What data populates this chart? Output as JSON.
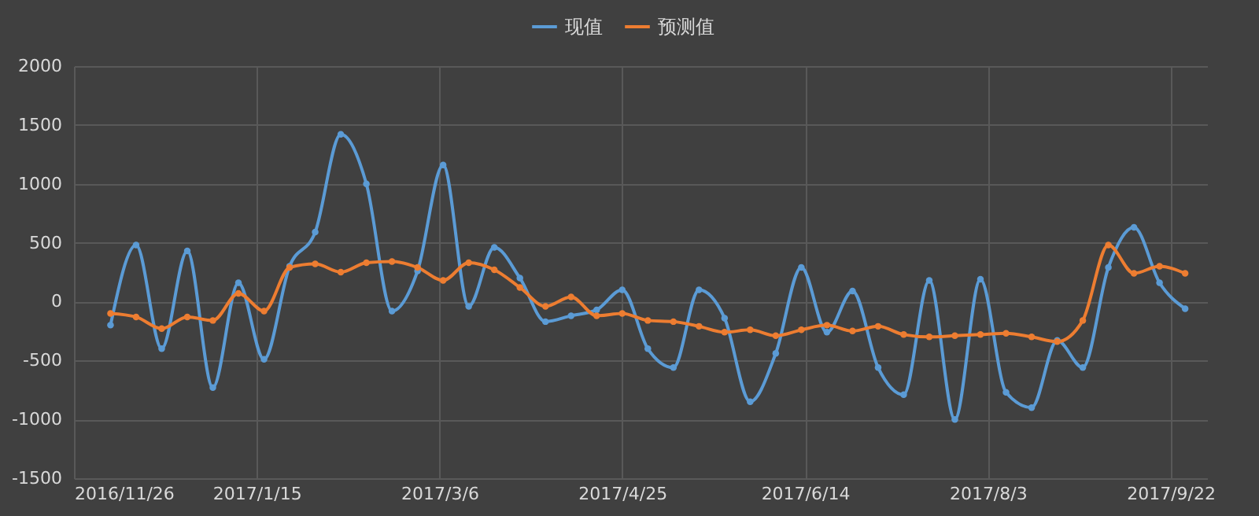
{
  "chart_data": {
    "type": "line",
    "x": [
      "2016-12-06",
      "2016-12-13",
      "2016-12-20",
      "2016-12-27",
      "2017-01-03",
      "2017-01-10",
      "2017-01-17",
      "2017-01-24",
      "2017-01-31",
      "2017-02-07",
      "2017-02-14",
      "2017-02-21",
      "2017-02-28",
      "2017-03-07",
      "2017-03-14",
      "2017-03-21",
      "2017-03-28",
      "2017-04-04",
      "2017-04-11",
      "2017-04-18",
      "2017-04-25",
      "2017-05-02",
      "2017-05-09",
      "2017-05-16",
      "2017-05-23",
      "2017-05-30",
      "2017-06-06",
      "2017-06-13",
      "2017-06-20",
      "2017-06-27",
      "2017-07-04",
      "2017-07-11",
      "2017-07-18",
      "2017-07-25",
      "2017-08-01",
      "2017-08-08",
      "2017-08-15",
      "2017-08-22",
      "2017-08-29",
      "2017-09-05",
      "2017-09-12",
      "2017-09-19",
      "2017-09-26"
    ],
    "series": [
      {
        "name": "现值",
        "color": "#5b9bd5",
        "values": [
          -200,
          480,
          -400,
          430,
          -730,
          160,
          -490,
          300,
          590,
          1420,
          1000,
          -80,
          260,
          1160,
          -40,
          460,
          200,
          -170,
          -120,
          -70,
          100,
          -400,
          -560,
          100,
          -140,
          -850,
          -440,
          290,
          -260,
          90,
          -560,
          -790,
          180,
          -1000,
          190,
          -770,
          -900,
          -330,
          -560,
          290,
          630,
          160,
          -60
        ]
      },
      {
        "name": "预测值",
        "color": "#ed7d31",
        "values": [
          -100,
          -130,
          -230,
          -130,
          -160,
          70,
          -80,
          290,
          320,
          250,
          330,
          340,
          290,
          180,
          330,
          270,
          120,
          -40,
          40,
          -120,
          -100,
          -160,
          -170,
          -210,
          -260,
          -240,
          -290,
          -240,
          -200,
          -250,
          -210,
          -280,
          -300,
          -290,
          -280,
          -270,
          -300,
          -340,
          -160,
          480,
          240,
          300,
          240
        ]
      }
    ],
    "xlim": [
      "2016-11-26",
      "2017-10-02"
    ],
    "xticks": [
      {
        "value": "2016-11-26",
        "label": "2016/11/26"
      },
      {
        "value": "2017-01-15",
        "label": "2017/1/15"
      },
      {
        "value": "2017-03-06",
        "label": "2017/3/6"
      },
      {
        "value": "2017-04-25",
        "label": "2017/4/25"
      },
      {
        "value": "2017-06-14",
        "label": "2017/6/14"
      },
      {
        "value": "2017-08-03",
        "label": "2017/8/3"
      },
      {
        "value": "2017-09-22",
        "label": "2017/9/22"
      }
    ],
    "ylim": [
      -1500,
      2000
    ],
    "yticks": [
      -1500,
      -1000,
      -500,
      0,
      500,
      1000,
      1500,
      2000
    ],
    "grid": true,
    "legend": "top",
    "marker": "circle",
    "line_style": "solid"
  }
}
